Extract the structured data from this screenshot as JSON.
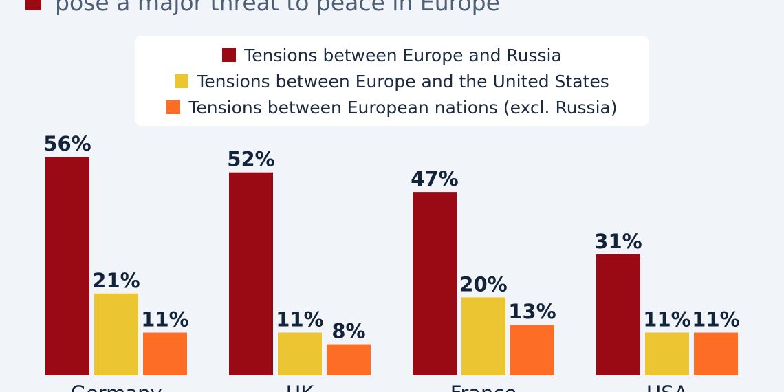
{
  "title": {
    "text": "pose a major threat to peace in Europe",
    "marker_color": "#9a0a14"
  },
  "chart_data": {
    "type": "bar",
    "categories": [
      "Germany",
      "UK",
      "France",
      "USA"
    ],
    "series": [
      {
        "name": "Tensions between Europe and Russia",
        "color": "#9a0a14",
        "values": [
          56,
          52,
          47,
          31
        ]
      },
      {
        "name": "Tensions between Europe and the United States",
        "color": "#ebc632",
        "values": [
          21,
          11,
          20,
          11
        ]
      },
      {
        "name": "Tensions between European nations (excl. Russia)",
        "color": "#fe6d25",
        "values": [
          11,
          8,
          13,
          11
        ]
      }
    ],
    "value_suffix": "%",
    "ylim": [
      0,
      56
    ],
    "grid": false,
    "legend_position": "top-center"
  }
}
